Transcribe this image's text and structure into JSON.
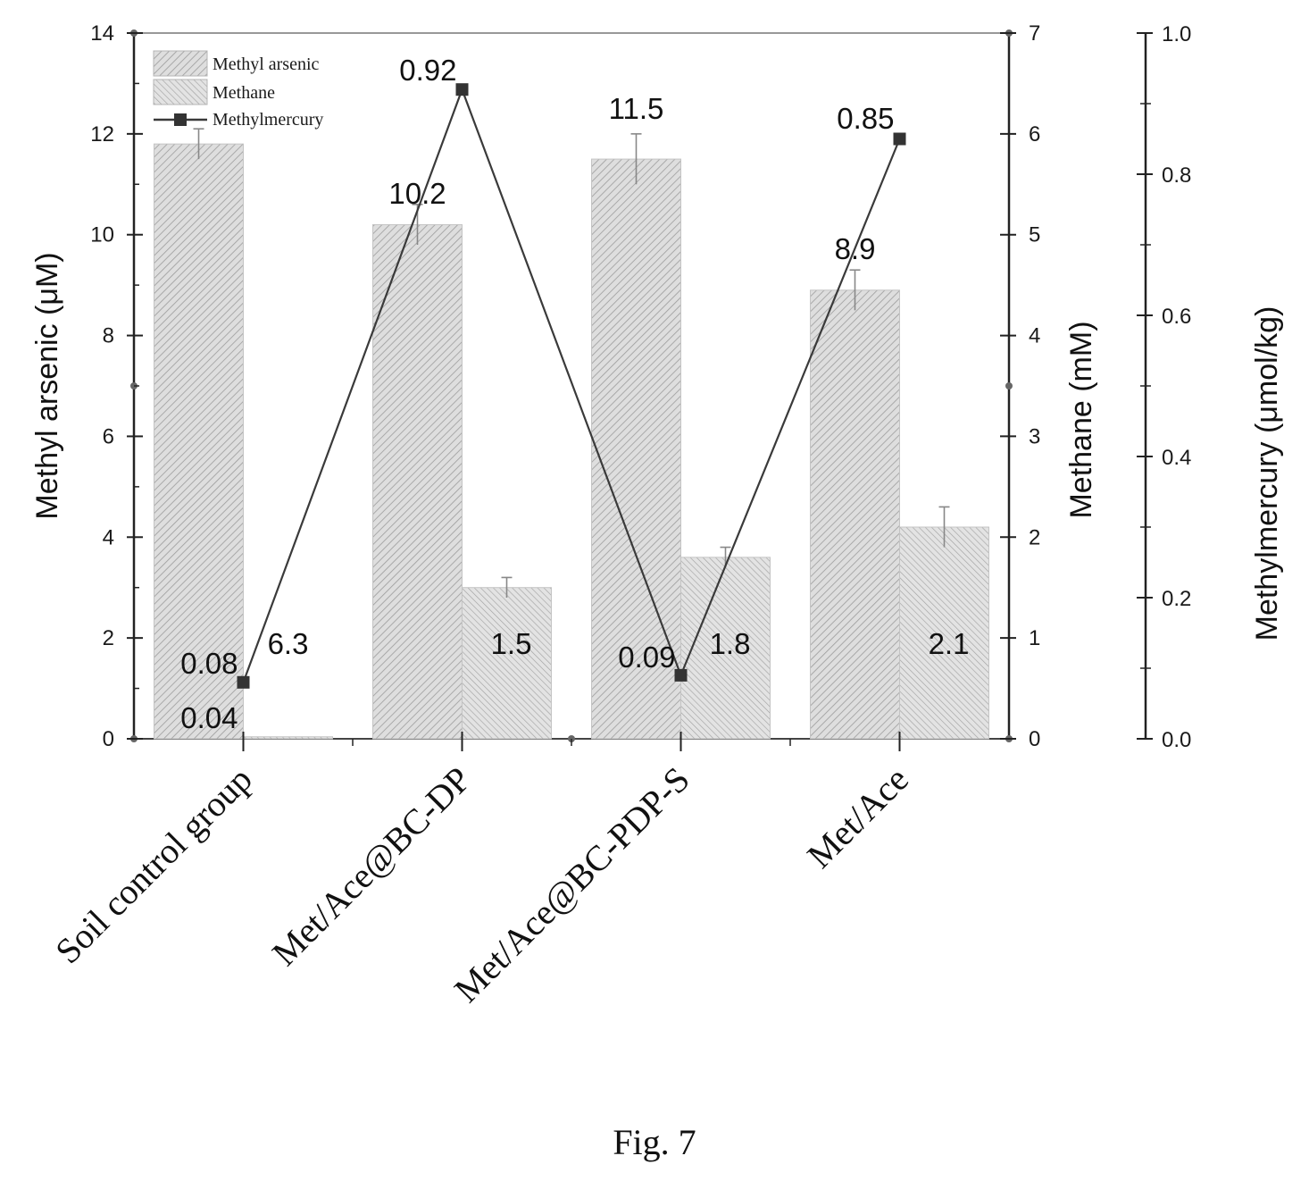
{
  "figure": {
    "caption": "Fig. 7"
  },
  "colors": {
    "ink": "#1a1a1a",
    "bar_fill": "#dcdcdc",
    "hatch": "#9a9a9a",
    "line": "#3a3a3a"
  },
  "chart_data": {
    "type": "bar",
    "title": "",
    "categories": [
      "Soil control group",
      "Met/Ace@BC-DP",
      "Met/Ace@BC-PDP-S",
      "Met/Ace"
    ],
    "series": [
      {
        "name": "Methyl arsenic",
        "type": "bar",
        "axis": "left",
        "values": [
          11.8,
          10.2,
          11.5,
          8.9
        ],
        "errors": [
          0.3,
          0.4,
          0.5,
          0.4
        ]
      },
      {
        "name": "Methane",
        "type": "bar",
        "axis": "right",
        "values": [
          0.02,
          1.5,
          1.8,
          2.1
        ],
        "errors": [
          0.0,
          0.1,
          0.1,
          0.2
        ]
      },
      {
        "name": "Methylmercury",
        "type": "line",
        "axis": "right2",
        "values": [
          0.08,
          0.92,
          0.09,
          0.85
        ],
        "errors": [
          0.0,
          0.0,
          0.0,
          0.02
        ]
      }
    ],
    "data_labels": {
      "Soil control group": {
        "methylmercury": "0.08",
        "methyl_arsenic": "6.3",
        "methane": "0.04"
      },
      "Met/Ace@BC-DP": {
        "methylmercury": "0.92",
        "methyl_arsenic": "10.2",
        "methane": "1.5"
      },
      "Met/Ace@BC-PDP-S": {
        "methylmercury": "0.09",
        "methyl_arsenic": "11.5",
        "methane": "1.8"
      },
      "Met/Ace": {
        "methylmercury": "0.85",
        "methyl_arsenic": "8.9",
        "methane": "2.1"
      }
    },
    "axes": {
      "left": {
        "label": "Methyl arsenic (μM)",
        "ylim": [
          0,
          14
        ],
        "ticks": [
          "0",
          "2",
          "4",
          "6",
          "8",
          "10",
          "12",
          "14"
        ]
      },
      "right": {
        "label": "Methane (mM)",
        "ylim": [
          0,
          7
        ],
        "ticks": [
          "0",
          "1",
          "2",
          "3",
          "4",
          "5",
          "6",
          "7"
        ]
      },
      "right2": {
        "label": "Methylmercury (μmol/kg)",
        "ylim": [
          0,
          1.0
        ],
        "ticks": [
          "0.0",
          "0.2",
          "0.4",
          "0.6",
          "0.8",
          "1.0"
        ]
      }
    },
    "legend": {
      "placement": "top-left",
      "entries": [
        "Methyl arsenic",
        "Methane",
        "Methylmercury"
      ]
    },
    "grid": false
  }
}
